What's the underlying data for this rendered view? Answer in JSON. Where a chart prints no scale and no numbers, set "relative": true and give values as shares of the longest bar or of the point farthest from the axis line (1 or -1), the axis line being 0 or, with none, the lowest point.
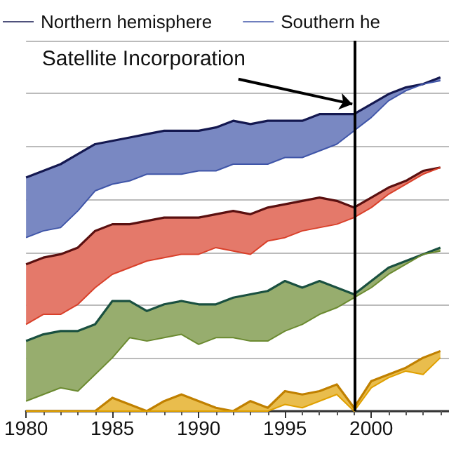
{
  "chart_data": {
    "type": "line",
    "relative": true,
    "x": [
      1980,
      1981,
      1982,
      1983,
      1984,
      1985,
      1986,
      1987,
      1988,
      1989,
      1990,
      1991,
      1992,
      1993,
      1994,
      1995,
      1996,
      1997,
      1998,
      1999,
      2000,
      2001,
      2002,
      2003,
      2004
    ],
    "xlim": [
      1980,
      2004.5
    ],
    "xticks": [
      1980,
      1985,
      1990,
      1995,
      2000
    ],
    "series": [
      {
        "name": "Northern hemisphere",
        "color": "#141850",
        "values": [
          0.7,
          0.72,
          0.74,
          0.77,
          0.8,
          0.81,
          0.82,
          0.83,
          0.84,
          0.84,
          0.84,
          0.85,
          0.87,
          0.86,
          0.87,
          0.87,
          0.87,
          0.89,
          0.89,
          0.89,
          0.92,
          0.95,
          0.97,
          0.98,
          1.0
        ]
      },
      {
        "name": "Southern he",
        "color": "#3f55a8",
        "values": [
          0.52,
          0.54,
          0.55,
          0.6,
          0.66,
          0.68,
          0.69,
          0.71,
          0.71,
          0.71,
          0.72,
          0.72,
          0.74,
          0.74,
          0.74,
          0.76,
          0.76,
          0.78,
          0.8,
          0.84,
          0.88,
          0.93,
          0.96,
          0.98,
          0.99
        ],
        "lower": [
          0.52,
          0.54,
          0.55,
          0.6,
          0.66,
          0.68,
          0.69,
          0.71,
          0.71,
          0.71,
          0.72,
          0.72,
          0.74,
          0.74,
          0.74,
          0.76,
          0.76,
          0.78,
          0.8,
          0.84,
          0.88,
          0.93,
          0.96,
          0.98,
          0.99
        ],
        "upper": [
          0.7,
          0.72,
          0.74,
          0.77,
          0.8,
          0.81,
          0.82,
          0.83,
          0.84,
          0.84,
          0.84,
          0.85,
          0.87,
          0.86,
          0.87,
          0.87,
          0.87,
          0.89,
          0.89,
          0.89,
          0.92,
          0.95,
          0.97,
          0.98,
          1.0
        ]
      },
      {
        "color": "#5a1010",
        "values": [
          0.44,
          0.46,
          0.47,
          0.49,
          0.54,
          0.56,
          0.56,
          0.57,
          0.58,
          0.58,
          0.58,
          0.59,
          0.6,
          0.59,
          0.61,
          0.62,
          0.63,
          0.64,
          0.63,
          0.61,
          0.64,
          0.67,
          0.69,
          0.72,
          0.73
        ]
      },
      {
        "color": "#d9402a",
        "values": [
          0.26,
          0.29,
          0.29,
          0.32,
          0.37,
          0.41,
          0.43,
          0.45,
          0.46,
          0.47,
          0.47,
          0.49,
          0.48,
          0.47,
          0.51,
          0.52,
          0.54,
          0.55,
          0.56,
          0.58,
          0.61,
          0.65,
          0.68,
          0.71,
          0.73
        ],
        "lower": [
          0.26,
          0.29,
          0.29,
          0.32,
          0.37,
          0.41,
          0.43,
          0.45,
          0.46,
          0.47,
          0.47,
          0.49,
          0.48,
          0.47,
          0.51,
          0.52,
          0.54,
          0.55,
          0.56,
          0.58,
          0.61,
          0.65,
          0.68,
          0.71,
          0.73
        ],
        "upper": [
          0.44,
          0.46,
          0.47,
          0.49,
          0.54,
          0.56,
          0.56,
          0.57,
          0.58,
          0.58,
          0.58,
          0.59,
          0.6,
          0.59,
          0.61,
          0.62,
          0.63,
          0.64,
          0.63,
          0.61,
          0.64,
          0.67,
          0.69,
          0.72,
          0.73
        ]
      },
      {
        "color": "#1a5040",
        "values": [
          0.21,
          0.23,
          0.24,
          0.24,
          0.26,
          0.33,
          0.33,
          0.3,
          0.32,
          0.33,
          0.32,
          0.32,
          0.34,
          0.35,
          0.36,
          0.39,
          0.37,
          0.39,
          0.37,
          0.35,
          0.39,
          0.43,
          0.45,
          0.47,
          0.49
        ]
      },
      {
        "color": "#6b8a30",
        "values": [
          0.03,
          0.05,
          0.07,
          0.06,
          0.11,
          0.16,
          0.22,
          0.21,
          0.22,
          0.23,
          0.2,
          0.22,
          0.22,
          0.21,
          0.21,
          0.24,
          0.26,
          0.29,
          0.31,
          0.34,
          0.37,
          0.41,
          0.44,
          0.47,
          0.48
        ],
        "lower": [
          0.03,
          0.05,
          0.07,
          0.06,
          0.11,
          0.16,
          0.22,
          0.21,
          0.22,
          0.23,
          0.2,
          0.22,
          0.22,
          0.21,
          0.21,
          0.24,
          0.26,
          0.29,
          0.31,
          0.34,
          0.37,
          0.41,
          0.44,
          0.47,
          0.48
        ],
        "upper": [
          0.21,
          0.23,
          0.24,
          0.24,
          0.26,
          0.33,
          0.33,
          0.3,
          0.32,
          0.33,
          0.32,
          0.32,
          0.34,
          0.35,
          0.36,
          0.39,
          0.37,
          0.39,
          0.37,
          0.35,
          0.39,
          0.43,
          0.45,
          0.47,
          0.49
        ]
      },
      {
        "color": "#c08000",
        "values": [
          0,
          0,
          0,
          0,
          0,
          0.04,
          0.02,
          0,
          0.03,
          0.05,
          0.03,
          0.01,
          0,
          0.03,
          0.01,
          0.06,
          0.05,
          0.06,
          0.08,
          0.01,
          0.09,
          0.11,
          0.13,
          0.16,
          0.18
        ]
      },
      {
        "color": "#e0a000",
        "values": [
          0,
          0,
          0,
          0,
          0,
          0,
          0,
          0,
          0,
          0,
          0,
          0,
          0,
          0,
          0,
          0.02,
          0.01,
          0.03,
          0.05,
          0,
          0.07,
          0.1,
          0.12,
          0.11,
          0.16
        ],
        "lower": [
          0,
          0,
          0,
          0,
          0,
          0,
          0,
          0,
          0,
          0,
          0,
          0,
          0,
          0,
          0,
          0.02,
          0.01,
          0.03,
          0.05,
          0,
          0.07,
          0.1,
          0.12,
          0.11,
          0.16
        ],
        "upper": [
          0,
          0,
          0,
          0,
          0,
          0.04,
          0.02,
          0,
          0.03,
          0.05,
          0.03,
          0.01,
          0,
          0.03,
          0.01,
          0.06,
          0.05,
          0.06,
          0.08,
          0.01,
          0.09,
          0.11,
          0.13,
          0.16,
          0.18
        ]
      }
    ],
    "ref_lines": [
      {
        "axis": "x",
        "value": 1999,
        "color": "#000000"
      }
    ],
    "annotations": [
      {
        "text": "Satellite Incorporation",
        "x": 1999,
        "y": 0.92
      }
    ],
    "grid": "y",
    "legend": "top",
    "line_style": "solid",
    "marker": "none"
  }
}
